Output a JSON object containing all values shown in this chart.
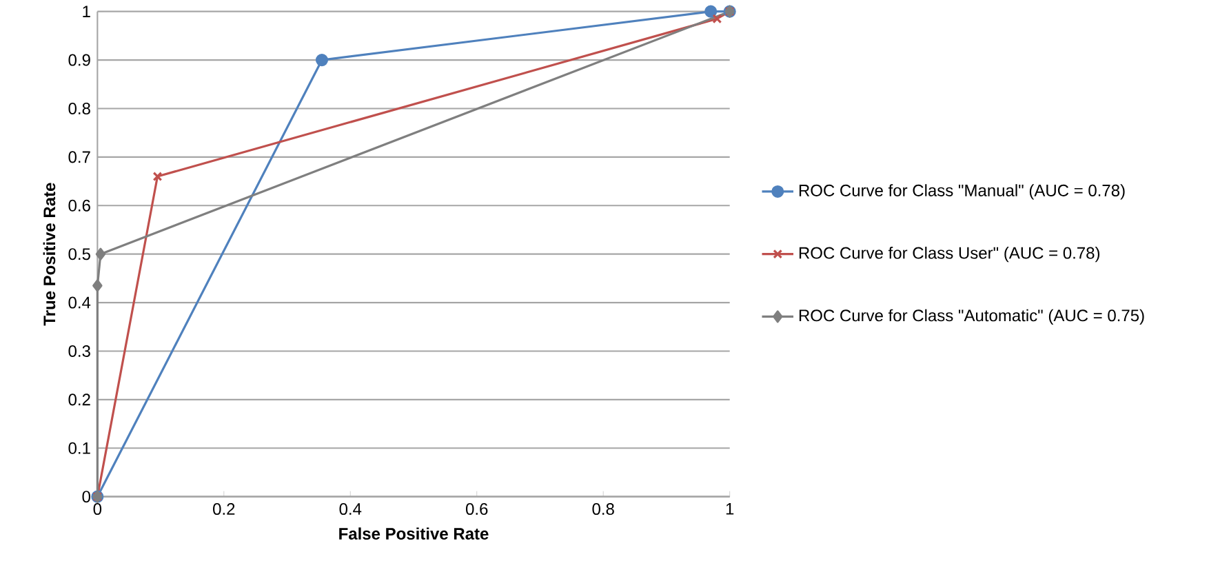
{
  "chart_data": {
    "type": "line",
    "xlabel": "False Positive Rate",
    "ylabel": "True Positive Rate",
    "xlim": [
      0,
      1
    ],
    "ylim": [
      0,
      1
    ],
    "xticks": [
      0,
      0.2,
      0.4,
      0.6,
      0.8,
      1
    ],
    "yticks": [
      0,
      0.1,
      0.2,
      0.3,
      0.4,
      0.5,
      0.6,
      0.7,
      0.8,
      0.9,
      1
    ],
    "grid": "y",
    "legend": "right",
    "line_style": "solid",
    "series": [
      {
        "name": "ROC Curve for Class \"Manual\" (AUC = 0.78)",
        "color": "#4f81bd",
        "marker": "circle",
        "x": [
          0,
          0.355,
          0.97,
          1
        ],
        "values": [
          0,
          0.9,
          1,
          1
        ]
      },
      {
        "name": "ROC Curve for Class User\" (AUC = 0.78)",
        "color": "#c0504d",
        "marker": "cross",
        "x": [
          0,
          0.095,
          0.98,
          1
        ],
        "values": [
          0,
          0.66,
          0.985,
          1
        ]
      },
      {
        "name": "ROC Curve for Class \"Automatic\" (AUC = 0.75)",
        "color": "#7f7f7f",
        "marker": "diamond",
        "x": [
          0,
          0,
          0.005,
          1
        ],
        "values": [
          0,
          0.435,
          0.5,
          1
        ]
      }
    ]
  }
}
